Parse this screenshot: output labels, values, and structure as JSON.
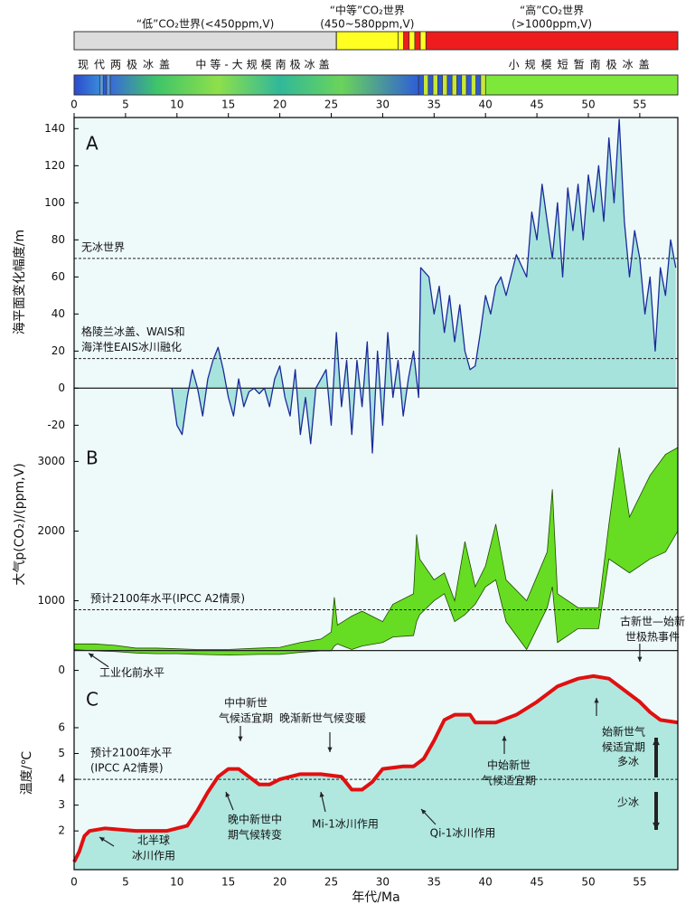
{
  "x_axis": {
    "label": "年代/Ma",
    "xlim": [
      0,
      58.7
    ],
    "xticks": [
      0,
      5,
      10,
      15,
      20,
      25,
      30,
      35,
      40,
      45,
      50,
      55
    ]
  },
  "co2_worlds": [
    {
      "label": [
        "“低”CO₂世界(<450ppm,V)"
      ],
      "start": 0,
      "end": 25.5,
      "color": "#dcdcdc"
    },
    {
      "label": [
        "“中等”CO₂世界",
        "(450~580ppm,V)"
      ],
      "start": 25.5,
      "end": 31.5,
      "color": "#ffff22"
    },
    {
      "label": [
        "“高”CO₂世界",
        "(>1000ppm,V)"
      ],
      "start": 34.2,
      "end": 58.7,
      "color": "#ee1c1c"
    }
  ],
  "ice_sheets": [
    {
      "label": "现代两极冰盖",
      "start": 0,
      "end": 2.5
    },
    {
      "label": "中等-大规模南极冰盖",
      "start": 3.5,
      "end": 33.5
    },
    {
      "label": "小规模短暂南极冰盖",
      "start": 40,
      "end": 58.7
    }
  ],
  "chart_data": [
    {
      "type": "area",
      "label": "A",
      "ylabel": "海平面变化幅度/m",
      "ylim": [
        -32,
        146
      ],
      "yticks": [
        -20,
        0,
        20,
        40,
        60,
        80,
        100,
        120,
        140
      ],
      "color": "#1a2a9a",
      "fill": "#a6e3dc",
      "x": [
        9.5,
        10,
        10.5,
        11,
        11.5,
        12,
        12.5,
        13,
        13.5,
        14,
        14.5,
        15,
        15.5,
        16,
        16.5,
        17,
        17.5,
        18,
        18.5,
        19,
        19.5,
        20,
        20.5,
        21,
        21.5,
        22,
        22.5,
        23,
        23.5,
        24,
        24.5,
        25,
        25.5,
        26,
        26.5,
        27,
        27.5,
        28,
        28.5,
        29,
        29.5,
        30,
        30.5,
        31,
        31.5,
        32,
        32.5,
        33,
        33.5,
        33.7,
        34.5,
        35,
        35.5,
        36,
        36.5,
        37,
        37.5,
        38,
        38.5,
        39,
        39.5,
        40,
        40.5,
        41,
        41.5,
        42,
        43,
        44,
        44.5,
        45,
        45.5,
        46,
        46.5,
        47,
        47.5,
        48,
        48.5,
        49,
        49.5,
        50,
        50.5,
        51,
        51.5,
        52,
        52.5,
        53,
        53.5,
        54,
        54.5,
        55,
        55.5,
        56,
        56.5,
        57,
        57.5,
        58,
        58.5
      ],
      "values": [
        0,
        -20,
        -25,
        -5,
        10,
        0,
        -15,
        5,
        15,
        22,
        10,
        -5,
        -15,
        5,
        -10,
        -2,
        0,
        -3,
        0,
        -10,
        5,
        12,
        -5,
        -15,
        10,
        -25,
        -5,
        -30,
        0,
        5,
        10,
        -20,
        30,
        -10,
        15,
        -25,
        15,
        -10,
        25,
        -35,
        20,
        -20,
        30,
        -5,
        15,
        -15,
        5,
        20,
        -5,
        65,
        60,
        40,
        55,
        30,
        50,
        25,
        45,
        20,
        10,
        12,
        30,
        50,
        40,
        55,
        60,
        50,
        72,
        60,
        95,
        80,
        110,
        90,
        70,
        100,
        60,
        108,
        85,
        110,
        80,
        115,
        95,
        120,
        90,
        135,
        100,
        145,
        90,
        60,
        85,
        70,
        40,
        60,
        20,
        65,
        50,
        80,
        65
      ],
      "reference_lines": [
        {
          "value": 70,
          "label": [
            "无冰世界"
          ],
          "style": "dashed"
        },
        {
          "value": 16,
          "label": [
            "格陵兰冰盖、WAIS和",
            "海洋性EAIS冰川融化"
          ],
          "style": "dashed"
        },
        {
          "value": 0,
          "style": "solid"
        }
      ]
    },
    {
      "type": "band",
      "label": "B",
      "ylabel": "大气p(CO₂)/(ppm,V)",
      "ylim": [
        -200,
        3200
      ],
      "yticks": [
        0,
        1000,
        2000,
        3000
      ],
      "color": "#66dd22",
      "stroke": "#1f4a00",
      "x": [
        0,
        2,
        4,
        6,
        8,
        10,
        12,
        15,
        18,
        20,
        22,
        24,
        25,
        25.3,
        25.6,
        27,
        28,
        30,
        31,
        33,
        33.3,
        33.6,
        35,
        36,
        37,
        38,
        39,
        40,
        41,
        42,
        44,
        46,
        46.5,
        47,
        49,
        51,
        52,
        53,
        54,
        56,
        57.5,
        58.7
      ],
      "lower": [
        300,
        280,
        270,
        250,
        240,
        240,
        230,
        220,
        230,
        230,
        260,
        280,
        280,
        350,
        380,
        300,
        350,
        400,
        480,
        500,
        700,
        800,
        1000,
        1100,
        700,
        800,
        950,
        1200,
        1300,
        700,
        300,
        900,
        1200,
        400,
        600,
        600,
        1600,
        1500,
        1400,
        1600,
        1700,
        2000
      ],
      "upper": [
        380,
        380,
        360,
        320,
        320,
        310,
        300,
        300,
        320,
        330,
        400,
        450,
        550,
        1050,
        650,
        780,
        850,
        700,
        950,
        1100,
        1950,
        1600,
        1300,
        1400,
        1000,
        1850,
        1200,
        1500,
        2100,
        1300,
        1000,
        1700,
        2600,
        1100,
        900,
        900,
        2100,
        3200,
        2200,
        2800,
        3100,
        3200
      ],
      "reference_lines": [
        {
          "value": 870,
          "label": [
            "预计2100年水平(IPCC A2情景)"
          ],
          "style": "dashed"
        },
        {
          "value": 285,
          "label": [
            "工业化前水平"
          ],
          "style": "solid"
        }
      ],
      "annotations": [
        {
          "text": [
            "古新世—始新",
            "世极热事件"
          ],
          "x": 55
        }
      ]
    },
    {
      "type": "line",
      "label": "C",
      "ylabel": "温度/℃",
      "ylim": [
        0.5,
        8.1
      ],
      "yticks": [
        2,
        3,
        4,
        5,
        6
      ],
      "color": "#e01010",
      "fill": "#b0e8e0",
      "x": [
        0,
        0.5,
        1,
        1.5,
        3,
        6,
        9,
        11,
        12,
        13,
        14,
        15,
        16,
        17,
        18,
        19,
        20,
        22,
        24,
        26,
        27,
        28,
        29,
        30,
        32,
        33,
        34,
        35,
        36,
        37,
        38.5,
        39,
        41,
        43,
        45,
        47,
        49,
        50.5,
        52,
        53,
        55,
        56,
        57,
        58.7
      ],
      "values": [
        0.8,
        1.2,
        1.8,
        2.0,
        2.1,
        2.0,
        2.0,
        2.2,
        2.8,
        3.5,
        4.1,
        4.4,
        4.4,
        4.1,
        3.8,
        3.8,
        4.0,
        4.2,
        4.2,
        4.1,
        3.6,
        3.6,
        3.9,
        4.4,
        4.5,
        4.5,
        4.8,
        5.5,
        6.3,
        6.5,
        6.5,
        6.2,
        6.2,
        6.5,
        7.0,
        7.6,
        7.9,
        8.0,
        7.9,
        7.6,
        7.0,
        6.6,
        6.3,
        6.2
      ],
      "reference_lines": [
        {
          "value": 4,
          "label": [
            "预计2100年水平",
            "(IPCC A2情景)"
          ],
          "style": "dashed"
        }
      ],
      "annotations": [
        {
          "text": [
            "中中新世",
            "气候适宜期"
          ]
        },
        {
          "text": [
            "晚渐新世气候变暖"
          ]
        },
        {
          "text": [
            "始新世气",
            "候适宜期"
          ]
        },
        {
          "text": [
            "中始新世",
            "气候适宜期"
          ]
        },
        {
          "text": [
            "晚中新世中",
            "期气候转变"
          ]
        },
        {
          "text": [
            "Mi-1冰川作用"
          ]
        },
        {
          "text": [
            "Qi-1冰川作用"
          ]
        },
        {
          "text": [
            "北半球",
            "冰川作用"
          ]
        }
      ],
      "ice_labels": [
        "多冰",
        "少冰"
      ]
    }
  ]
}
